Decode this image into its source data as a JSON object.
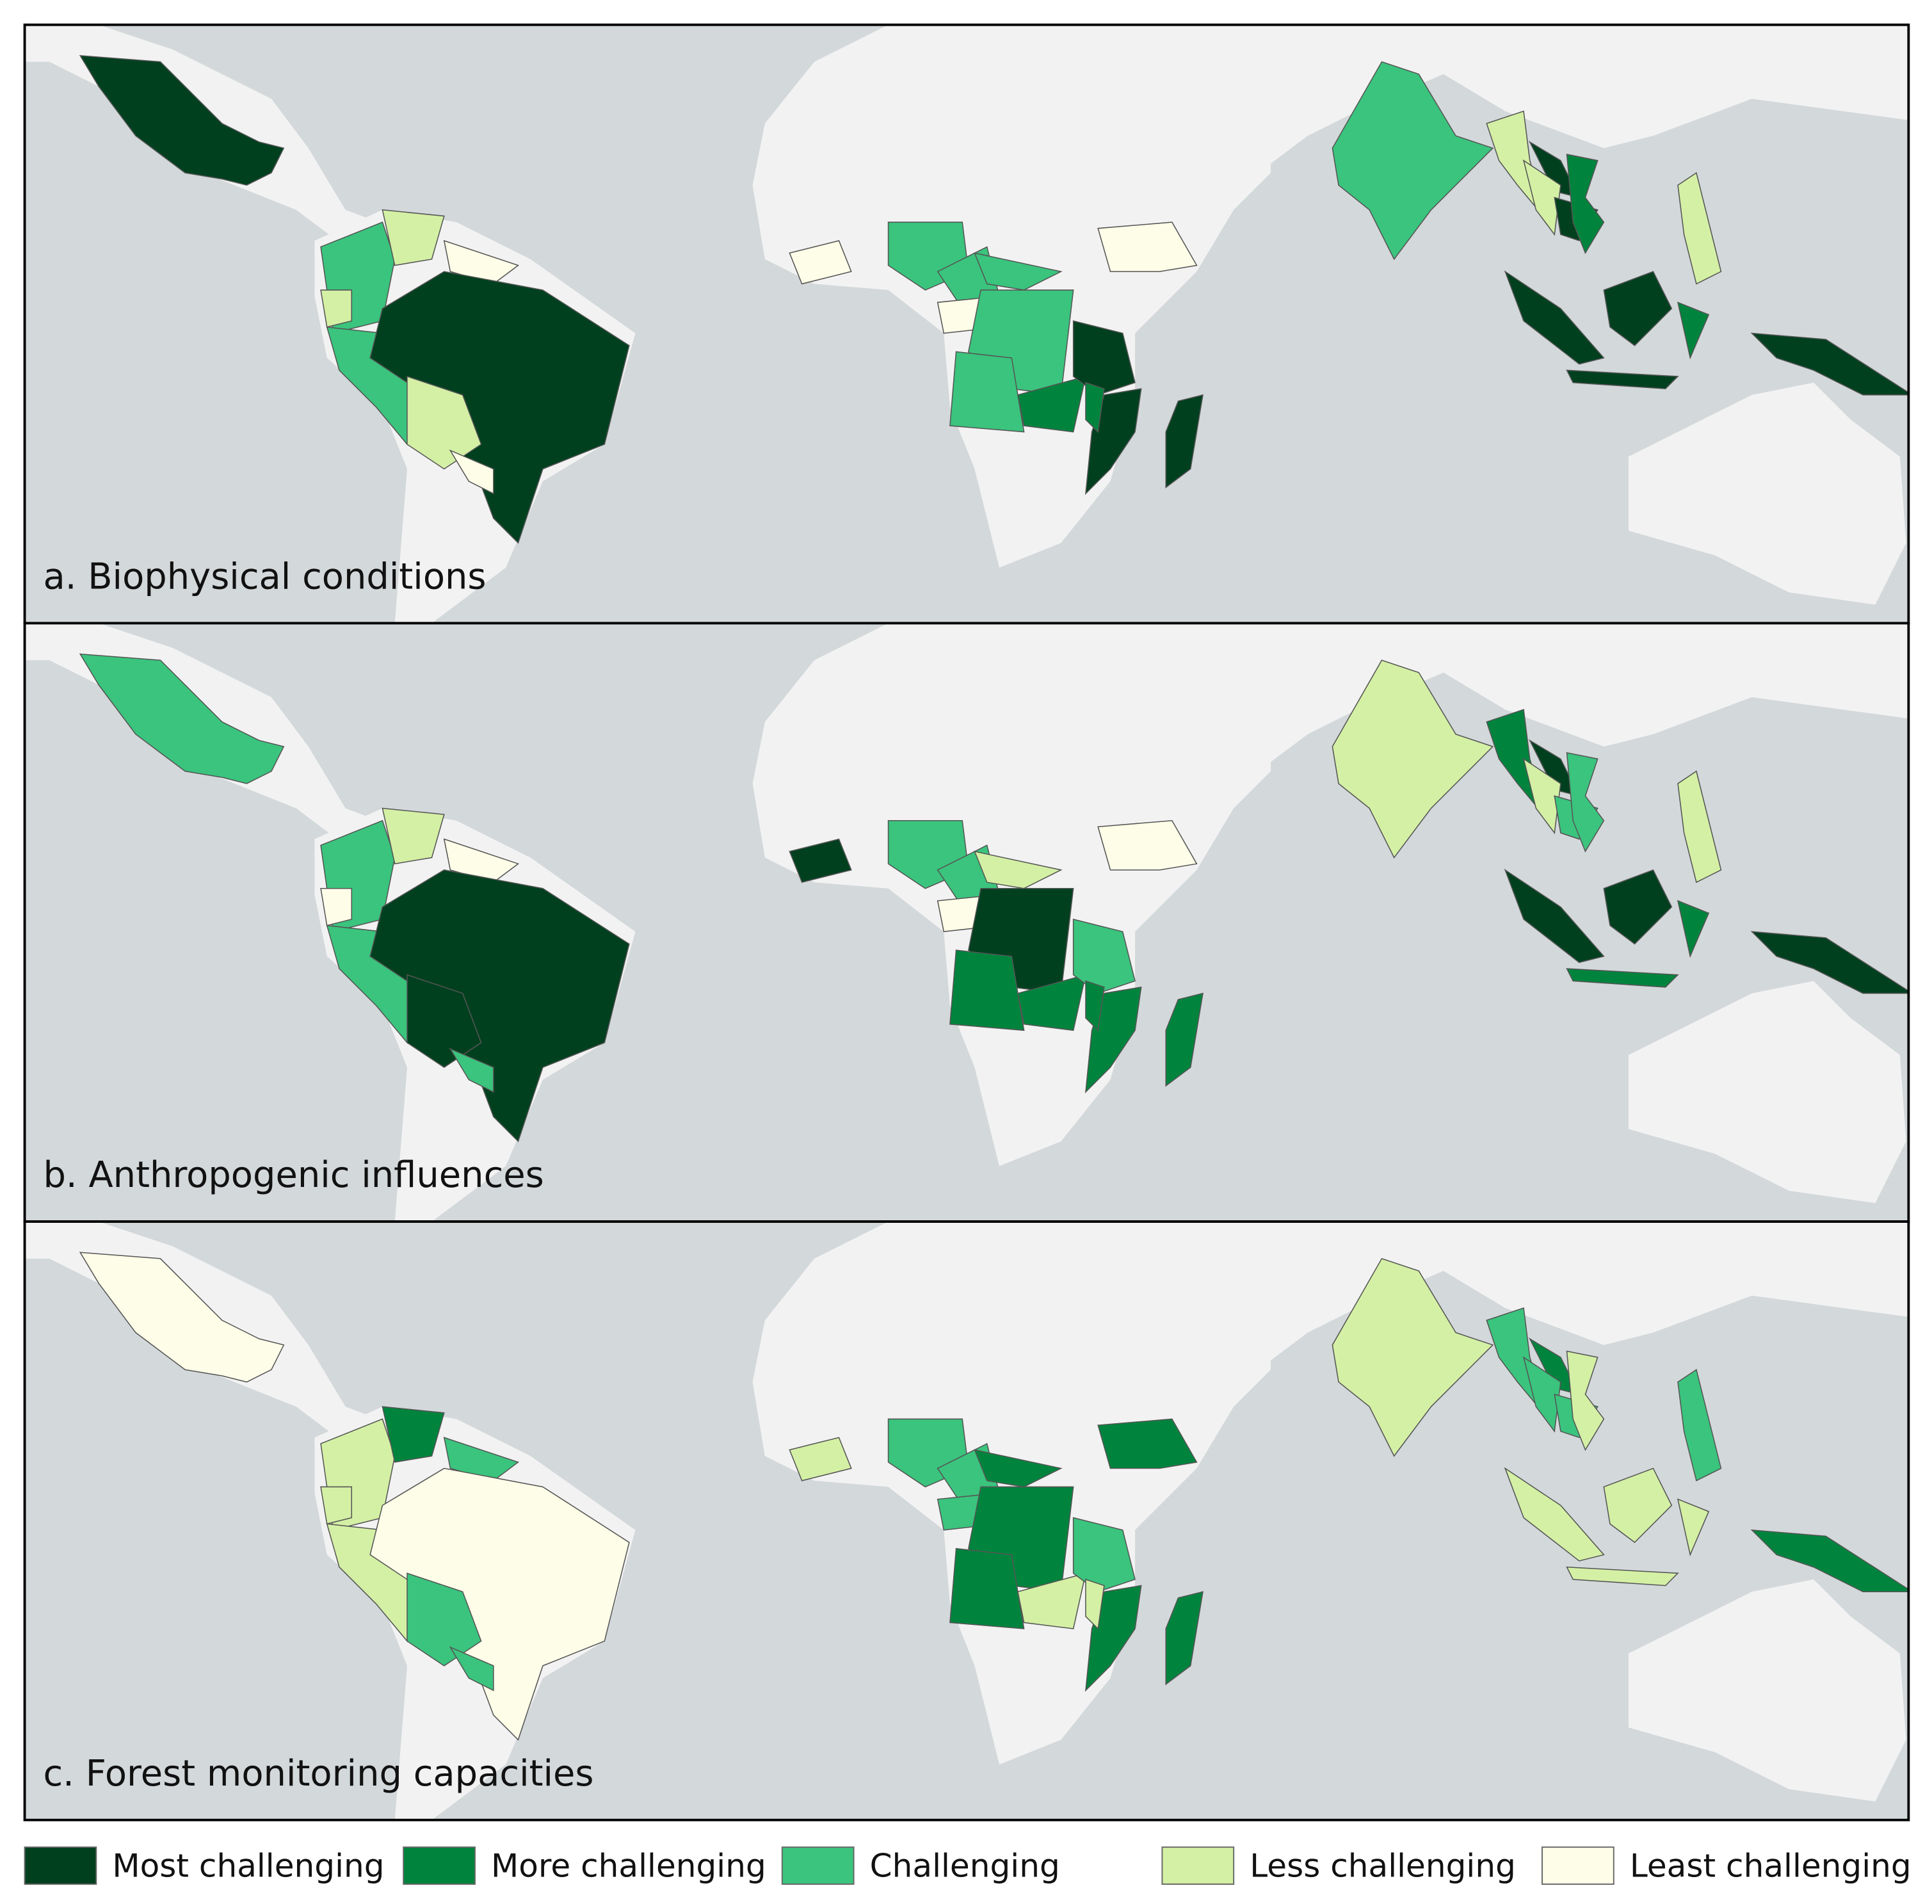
{
  "panels": [
    {
      "label": "a. Biophysical conditions"
    },
    {
      "label": "b. Anthropogenic influences"
    },
    {
      "label": "c. Forest monitoring capacities"
    }
  ],
  "legend": [
    {
      "label": "Most challenging",
      "color": "#00401f"
    },
    {
      "label": "More challenging",
      "color": "#00843d"
    },
    {
      "label": "Challenging",
      "color": "#3ac47d"
    },
    {
      "label": "Less challenging",
      "color": "#d4f0a5"
    },
    {
      "label": "Least challenging",
      "color": "#fefee8"
    }
  ]
}
